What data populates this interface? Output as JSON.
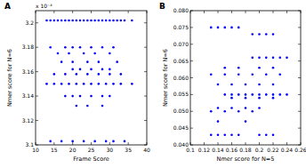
{
  "chart_data": [
    {
      "type": "scatter",
      "title": "A",
      "x_label": "Frame Score",
      "y_label": "Nmer score for N=6",
      "annotations": [
        "x 10⁻⁴"
      ],
      "color": "#0000ff",
      "marker": "dot",
      "xlim": [
        10,
        40
      ],
      "xticks": [
        10,
        15,
        20,
        25,
        30,
        35,
        40
      ],
      "ylim": [
        3.1,
        3.21
      ],
      "yticks": [
        3.1,
        3.12,
        3.14,
        3.16,
        3.18,
        3.2
      ],
      "x": [
        13,
        14,
        15,
        16,
        17,
        18,
        19,
        20,
        21,
        22,
        23,
        24,
        25,
        26,
        27,
        28,
        29,
        30,
        31,
        32,
        33,
        34,
        36,
        14,
        18,
        20,
        22,
        25,
        28,
        31,
        16,
        19,
        23,
        26,
        30,
        17,
        20,
        24,
        27,
        32,
        20,
        22,
        25,
        28,
        30,
        15,
        18,
        21,
        24,
        27,
        30,
        33,
        13,
        15,
        17,
        19,
        21,
        23,
        25,
        27,
        29,
        31,
        33,
        36,
        18,
        20,
        22,
        25,
        28,
        30,
        21,
        24,
        28,
        14,
        17,
        20,
        23,
        26,
        29,
        31,
        34
      ],
      "values": [
        3.202,
        3.202,
        3.202,
        3.202,
        3.202,
        3.202,
        3.202,
        3.202,
        3.202,
        3.202,
        3.202,
        3.202,
        3.202,
        3.202,
        3.202,
        3.202,
        3.202,
        3.202,
        3.202,
        3.202,
        3.202,
        3.202,
        3.202,
        3.18,
        3.18,
        3.18,
        3.18,
        3.18,
        3.18,
        3.18,
        3.175,
        3.175,
        3.175,
        3.175,
        3.175,
        3.168,
        3.168,
        3.168,
        3.168,
        3.168,
        3.162,
        3.162,
        3.162,
        3.162,
        3.162,
        3.158,
        3.158,
        3.158,
        3.158,
        3.158,
        3.158,
        3.158,
        3.15,
        3.15,
        3.15,
        3.15,
        3.15,
        3.15,
        3.15,
        3.15,
        3.15,
        3.15,
        3.15,
        3.15,
        3.14,
        3.14,
        3.14,
        3.14,
        3.14,
        3.14,
        3.132,
        3.132,
        3.132,
        3.103,
        3.103,
        3.103,
        3.103,
        3.103,
        3.103,
        3.103,
        3.103
      ]
    },
    {
      "type": "scatter",
      "title": "B",
      "x_label": "Nmer score for N=5",
      "y_label": "Nmer score for N=6",
      "color": "#0000ff",
      "marker": "dot",
      "xlim": [
        0.1,
        0.26
      ],
      "xticks": [
        0.1,
        0.12,
        0.14,
        0.16,
        0.18,
        0.2,
        0.22,
        0.24,
        0.26
      ],
      "ylim": [
        0.04,
        0.08
      ],
      "yticks": [
        {
          "value": 0.04,
          "label": "0.040"
        },
        {
          "value": 0.045,
          "label": "0.045"
        },
        {
          "value": 0.05,
          "label": "0.050"
        },
        {
          "value": 0.055,
          "label": "0.055"
        },
        {
          "value": 0.06,
          "label": "0.060"
        },
        {
          "value": 0.065,
          "label": "0.065"
        },
        {
          "value": 0.07,
          "label": "0.070"
        },
        {
          "value": 0.075,
          "label": "0.075"
        },
        {
          "value": 0.08,
          "label": "0.080"
        }
      ],
      "x": [
        0.13,
        0.14,
        0.15,
        0.16,
        0.17,
        0.19,
        0.2,
        0.21,
        0.22,
        0.19,
        0.2,
        0.21,
        0.22,
        0.23,
        0.24,
        0.15,
        0.17,
        0.2,
        0.22,
        0.13,
        0.15,
        0.17,
        0.19,
        0.21,
        0.23,
        0.14,
        0.16,
        0.18,
        0.2,
        0.22,
        0.15,
        0.16,
        0.17,
        0.18,
        0.19,
        0.2,
        0.21,
        0.22,
        0.23,
        0.24,
        0.16,
        0.18,
        0.2,
        0.22,
        0.14,
        0.16,
        0.18,
        0.2,
        0.13,
        0.15,
        0.17,
        0.19,
        0.14,
        0.18,
        0.13,
        0.14,
        0.15,
        0.16,
        0.17,
        0.2,
        0.21,
        0.22
      ],
      "values": [
        0.075,
        0.075,
        0.075,
        0.075,
        0.075,
        0.073,
        0.073,
        0.073,
        0.073,
        0.066,
        0.066,
        0.066,
        0.066,
        0.066,
        0.066,
        0.063,
        0.063,
        0.063,
        0.063,
        0.061,
        0.061,
        0.061,
        0.061,
        0.061,
        0.061,
        0.058,
        0.058,
        0.058,
        0.058,
        0.058,
        0.055,
        0.055,
        0.055,
        0.055,
        0.055,
        0.055,
        0.055,
        0.055,
        0.055,
        0.055,
        0.054,
        0.054,
        0.054,
        0.054,
        0.051,
        0.051,
        0.051,
        0.051,
        0.05,
        0.05,
        0.05,
        0.05,
        0.047,
        0.047,
        0.043,
        0.043,
        0.043,
        0.043,
        0.043,
        0.043,
        0.043,
        0.043
      ]
    }
  ]
}
